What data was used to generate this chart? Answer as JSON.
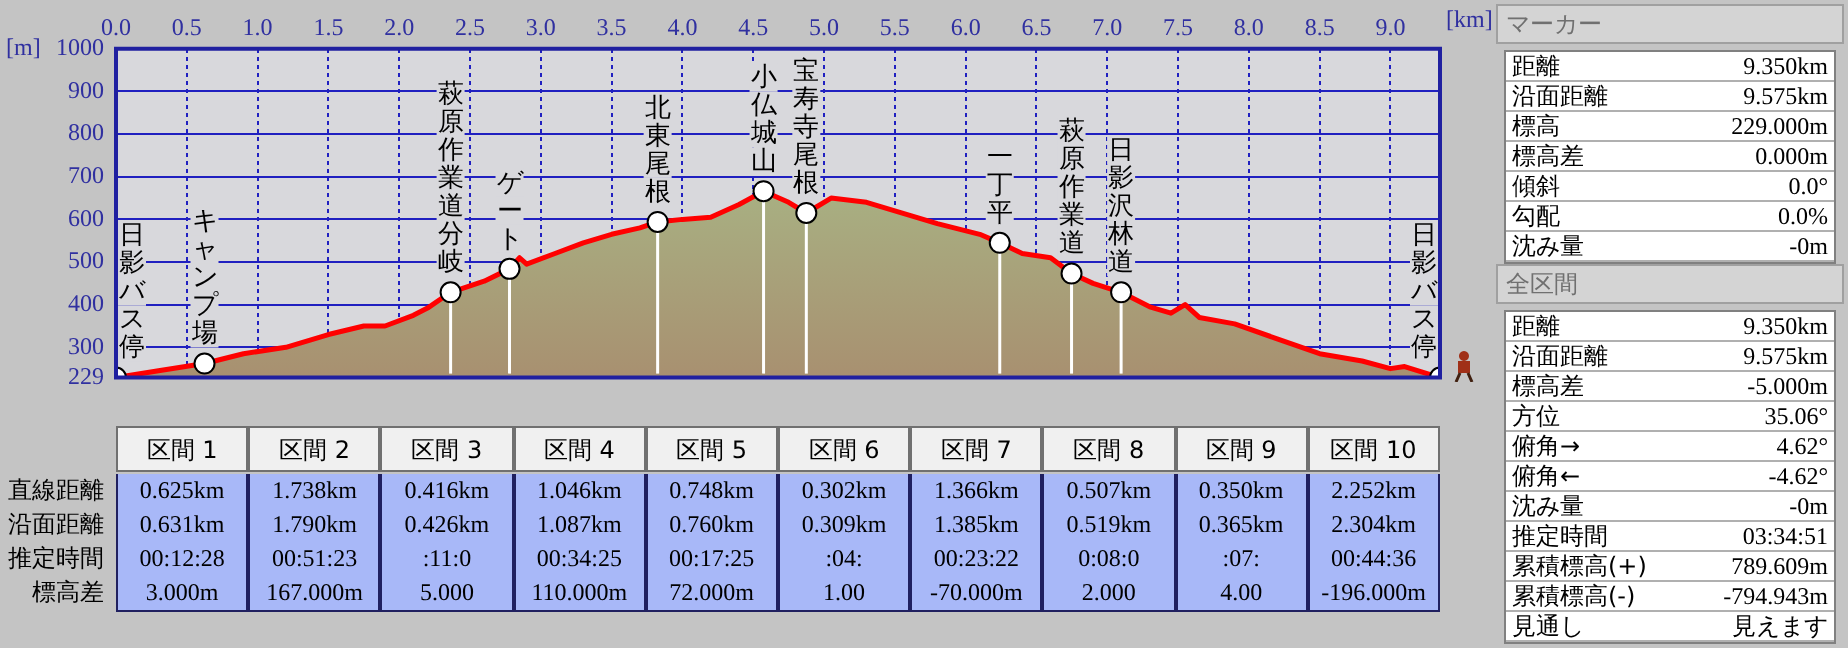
{
  "chart_data": {
    "type": "area",
    "xlabel": "[km]",
    "ylabel": "[m]",
    "xlim": [
      0,
      9.35
    ],
    "xticks": [
      {
        "value": 0,
        "label": "0.0"
      },
      {
        "value": 0.5,
        "label": "0.5"
      },
      {
        "value": 1,
        "label": "1.0"
      },
      {
        "value": 1.5,
        "label": "1.5"
      },
      {
        "value": 2,
        "label": "2.0"
      },
      {
        "value": 2.5,
        "label": "2.5"
      },
      {
        "value": 3,
        "label": "3.0"
      },
      {
        "value": 3.5,
        "label": "3.5"
      },
      {
        "value": 4,
        "label": "4.0"
      },
      {
        "value": 4.5,
        "label": "4.5"
      },
      {
        "value": 5,
        "label": "5.0"
      },
      {
        "value": 5.5,
        "label": "5.5"
      },
      {
        "value": 6,
        "label": "6.0"
      },
      {
        "value": 6.5,
        "label": "6.5"
      },
      {
        "value": 7,
        "label": "7.0"
      },
      {
        "value": 7.5,
        "label": "7.5"
      },
      {
        "value": 8,
        "label": "8.0"
      },
      {
        "value": 8.5,
        "label": "8.5"
      },
      {
        "value": 9,
        "label": "9.0"
      }
    ],
    "ylim": [
      229,
      1000
    ],
    "yticks": [
      229,
      300,
      400,
      500,
      600,
      700,
      800,
      900,
      1000
    ],
    "grid": true,
    "series": [
      {
        "type": "area",
        "color": "#ff0000",
        "x": [
          0,
          0.3,
          0.625,
          0.9,
          1.2,
          1.5,
          1.75,
          1.9,
          2.1,
          2.2,
          2.363,
          2.6,
          2.779,
          2.85,
          2.9,
          3.1,
          3.3,
          3.5,
          3.7,
          3.825,
          4.0,
          4.2,
          4.4,
          4.573,
          4.75,
          4.875,
          5.05,
          5.3,
          5.5,
          5.8,
          6.1,
          6.241,
          6.4,
          6.6,
          6.748,
          6.9,
          7.098,
          7.3,
          7.45,
          7.55,
          7.65,
          7.9,
          8.2,
          8.5,
          8.8,
          9.0,
          9.1,
          9.35
        ],
        "values": [
          229,
          245,
          262,
          285,
          300,
          330,
          350,
          350,
          375,
          392,
          429,
          455,
          484,
          510,
          495,
          520,
          545,
          565,
          580,
          594,
          600,
          605,
          635,
          666,
          640,
          615,
          650,
          640,
          620,
          590,
          565,
          545,
          520,
          510,
          473,
          450,
          429,
          395,
          380,
          400,
          370,
          355,
          320,
          285,
          268,
          250,
          255,
          229
        ]
      },
      {
        "type": "scatter",
        "color": "#ffffff",
        "marker": "circle",
        "x": [
          0,
          0.625,
          2.363,
          2.779,
          3.825,
          4.573,
          4.875,
          6.241,
          6.748,
          7.098,
          9.35
        ],
        "values": [
          229,
          262,
          429,
          484,
          594,
          666,
          615,
          545,
          473,
          429,
          229
        ]
      }
    ],
    "annotations": [
      {
        "text": "日影バス停",
        "x": 0,
        "y": 229
      },
      {
        "text": "キャンプ場",
        "x": 0.625,
        "y": 262
      },
      {
        "text": "萩原作業道分岐",
        "x": 2.363,
        "y": 429
      },
      {
        "text": "ゲート",
        "x": 2.779,
        "y": 484
      },
      {
        "text": "北東尾根",
        "x": 3.825,
        "y": 594
      },
      {
        "text": "小仏城山",
        "x": 4.573,
        "y": 666
      },
      {
        "text": "宝寿寺尾根",
        "x": 4.875,
        "y": 615
      },
      {
        "text": "一丁平",
        "x": 6.241,
        "y": 545
      },
      {
        "text": "萩原作業道",
        "x": 6.748,
        "y": 473
      },
      {
        "text": "日影沢林道",
        "x": 7.098,
        "y": 429
      },
      {
        "text": "日影バス停",
        "x": 9.35,
        "y": 229
      },
      "直線距離",
      "沿面距離",
      "推定時間",
      "標高差",
      "区間 1",
      "区間 2",
      "区間 3",
      "区間 4",
      "区間 5",
      "区間 6",
      "区間 7",
      "区間 8",
      "区間 9",
      "区間 10",
      "0.625km",
      "1.738km",
      "0.416km",
      "1.046km",
      "0.748km",
      "0.302km",
      "1.366km",
      "0.507km",
      "0.350km",
      "2.252km",
      "0.631km",
      "1.790km",
      "0.426km",
      "1.087km",
      "0.760km",
      "0.309km",
      "1.385km",
      "0.519km",
      "0.365km",
      "2.304km",
      "00:12:28",
      "00:51:23",
      ":11:0",
      "00:34:25",
      "00:17:25",
      ":04:",
      "00:23:22",
      "0:08:0",
      ":07:",
      "00:44:36",
      "3.000m",
      "167.000m",
      "5.000",
      "110.000m",
      "72.000m",
      "1.00",
      "-70.000m",
      "2.000",
      "4.00",
      "-196.000m",
      "マーカー",
      "距離",
      "9.350km",
      "沿面距離",
      "9.575km",
      "標高",
      "229.000m",
      "標高差",
      "0.000m",
      "傾斜",
      "0.0°",
      "勾配",
      "0.0%",
      "沈み量",
      "-0m",
      "全区間",
      "距離",
      "9.350km",
      "沿面距離",
      "9.575km",
      "標高差",
      "-5.000m",
      "方位",
      "35.06°",
      "俯角→",
      "4.62°",
      "俯角←",
      "-4.62°",
      "沈み量",
      "-0m",
      "推定時間",
      "03:34:51",
      "累積標高(+)",
      "789.609m",
      "累積標高(-)",
      "-794.943m",
      "見通し",
      "見えます"
    ]
  }
}
